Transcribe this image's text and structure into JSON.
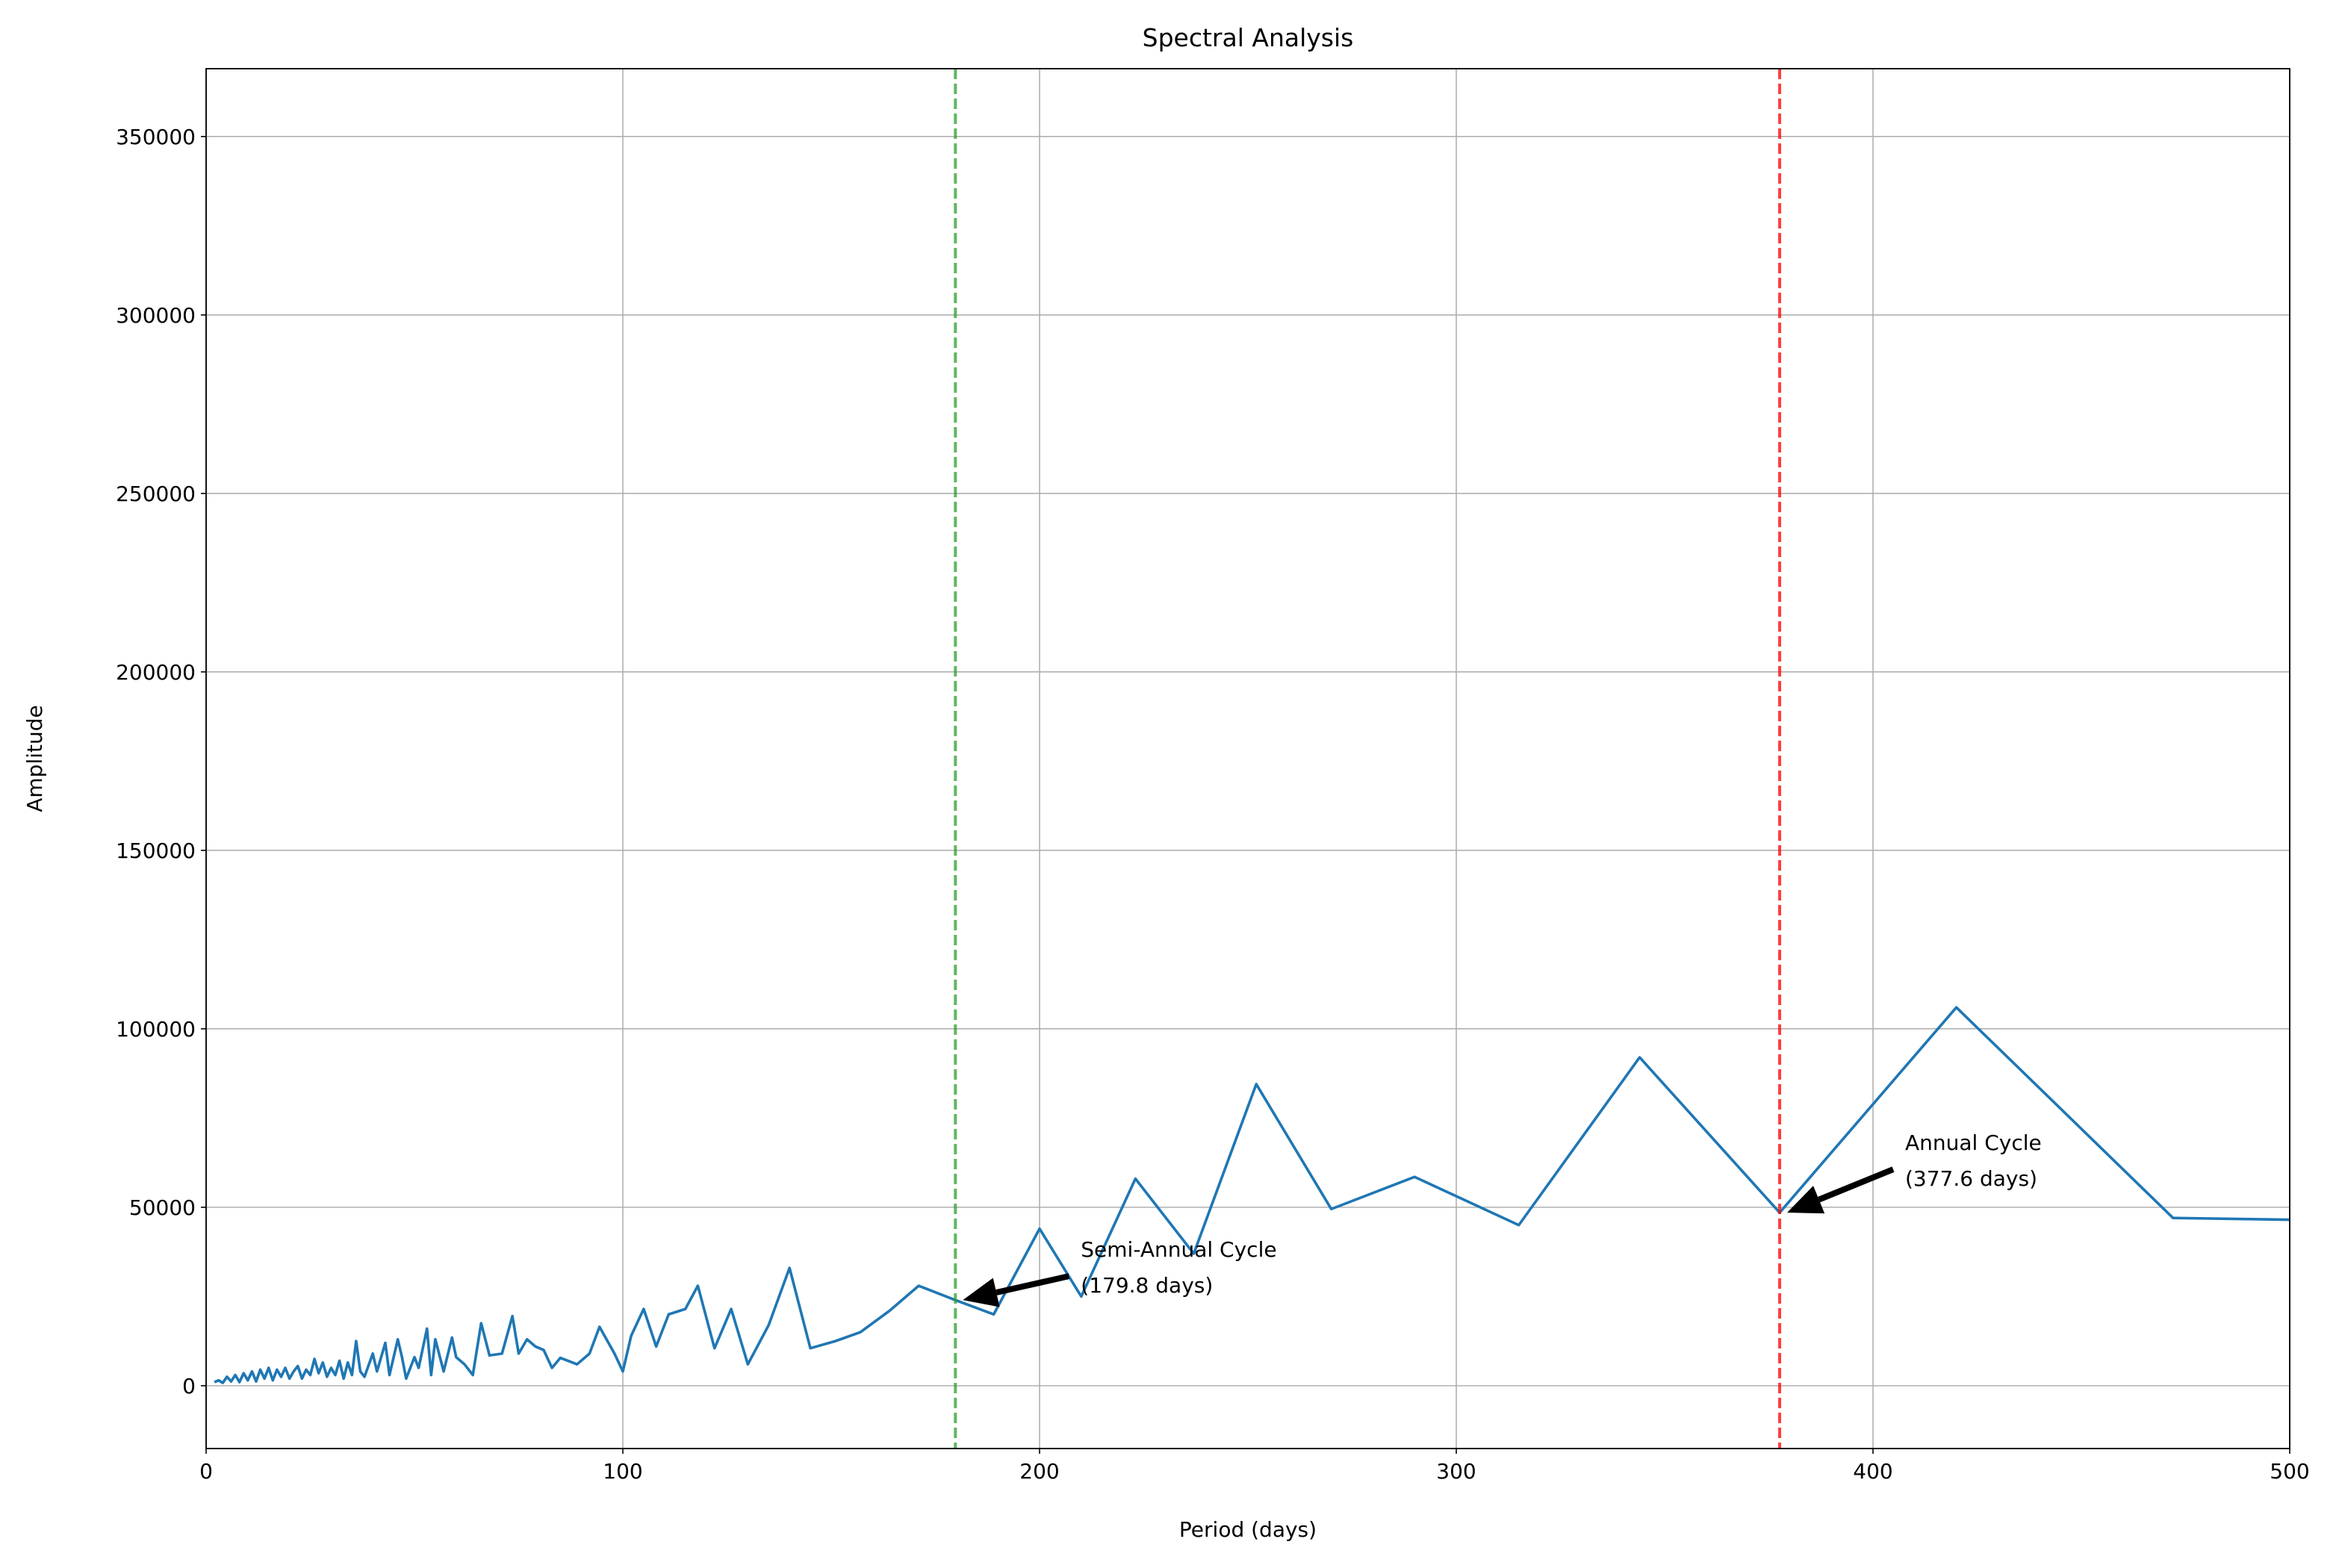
{
  "chart_data": {
    "type": "line",
    "title": "Spectral Analysis",
    "x_label": "Period (days)",
    "y_label": "Amplitude",
    "xlim": [
      0,
      500
    ],
    "ylim": [
      -17600,
      369000
    ],
    "xticks": [
      0,
      100,
      200,
      300,
      400,
      500
    ],
    "yticks": [
      0,
      50000,
      100000,
      150000,
      200000,
      250000,
      300000,
      350000
    ],
    "grid": true,
    "series": [
      {
        "color": "#1f77b4",
        "x": [
          2,
          3,
          4,
          5,
          6,
          7,
          8,
          9,
          10,
          11,
          12,
          13,
          14,
          15,
          16,
          17,
          18,
          19,
          20,
          21,
          22,
          23,
          24,
          25,
          26,
          27,
          28,
          29,
          30,
          31,
          32,
          33,
          34,
          35,
          36,
          37,
          38,
          40,
          41,
          43,
          44,
          46,
          47,
          48,
          50,
          51,
          53,
          54,
          55,
          57,
          59,
          60,
          62,
          64,
          66,
          68,
          71,
          73.5,
          75,
          77,
          79,
          81,
          83,
          85,
          89,
          92,
          94.4,
          98,
          100,
          102,
          105,
          108,
          111,
          115,
          118,
          122,
          126,
          130,
          135,
          140,
          145,
          151,
          157,
          164,
          171,
          179.8,
          189,
          200,
          210,
          223,
          237,
          252,
          270,
          290,
          315,
          344,
          377.6,
          420,
          472,
          500
        ],
        "values": [
          1000,
          1500,
          800,
          2500,
          1200,
          3000,
          1000,
          3500,
          1500,
          4000,
          1200,
          4500,
          2000,
          5000,
          1500,
          4500,
          2500,
          5000,
          2000,
          4000,
          5500,
          2000,
          4500,
          3000,
          7500,
          3500,
          6500,
          2500,
          5000,
          3000,
          7000,
          2000,
          6500,
          3000,
          12500,
          4000,
          2500,
          9000,
          4000,
          12000,
          3000,
          13000,
          8000,
          2000,
          8000,
          5000,
          16000,
          3000,
          13000,
          4000,
          13500,
          8000,
          6000,
          3000,
          17500,
          8500,
          9000,
          19500,
          9000,
          13000,
          11000,
          10000,
          5000,
          7800,
          6000,
          9000,
          16500,
          9000,
          4000,
          14000,
          21500,
          11000,
          20000,
          21500,
          28000,
          10500,
          21500,
          6000,
          17000,
          33000,
          10500,
          12500,
          15000,
          21000,
          28000,
          24000,
          20000,
          44000,
          25000,
          58000,
          37000,
          84500,
          49500,
          58500,
          45000,
          92000,
          48500,
          106000,
          47000,
          46500
        ]
      }
    ],
    "vlines": [
      {
        "x": 179.8,
        "color": "#2ca02c"
      },
      {
        "x": 377.6,
        "color": "#ff0000"
      }
    ],
    "annotations": [
      {
        "lines": [
          "Semi-Annual Cycle",
          "(179.8 days)"
        ],
        "x": 179.8,
        "y": 24000
      },
      {
        "lines": [
          "Annual Cycle",
          "(377.6 days)"
        ],
        "x": 377.6,
        "y": 48500
      }
    ]
  }
}
